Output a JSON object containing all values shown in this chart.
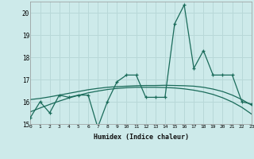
{
  "xlabel": "Humidex (Indice chaleur)",
  "bg_color": "#cdeaea",
  "grid_color": "#b8d8d8",
  "line_color": "#1a6b5a",
  "x_data": [
    0,
    1,
    2,
    3,
    4,
    5,
    6,
    7,
    8,
    9,
    10,
    11,
    12,
    13,
    14,
    15,
    16,
    17,
    18,
    19,
    20,
    21,
    22,
    23
  ],
  "y_main": [
    15.3,
    16.0,
    15.5,
    16.3,
    16.2,
    16.3,
    16.3,
    14.85,
    16.0,
    16.9,
    17.2,
    17.2,
    16.2,
    16.2,
    16.2,
    19.5,
    20.35,
    17.5,
    18.3,
    17.2,
    17.2,
    17.2,
    16.0,
    15.9
  ],
  "y_smooth1": [
    16.1,
    16.15,
    16.22,
    16.3,
    16.38,
    16.46,
    16.54,
    16.6,
    16.65,
    16.68,
    16.7,
    16.72,
    16.73,
    16.73,
    16.74,
    16.73,
    16.72,
    16.7,
    16.65,
    16.57,
    16.46,
    16.3,
    16.1,
    15.85
  ],
  "y_smooth2": [
    15.55,
    15.72,
    15.88,
    16.03,
    16.17,
    16.29,
    16.4,
    16.48,
    16.55,
    16.6,
    16.63,
    16.65,
    16.65,
    16.65,
    16.64,
    16.62,
    16.58,
    16.52,
    16.44,
    16.33,
    16.18,
    15.99,
    15.75,
    15.45
  ],
  "ylim": [
    15.0,
    20.5
  ],
  "xlim": [
    0,
    23
  ],
  "yticks": [
    15,
    16,
    17,
    18,
    19,
    20
  ],
  "xticks": [
    0,
    1,
    2,
    3,
    4,
    5,
    6,
    7,
    8,
    9,
    10,
    11,
    12,
    13,
    14,
    15,
    16,
    17,
    18,
    19,
    20,
    21,
    22,
    23
  ]
}
